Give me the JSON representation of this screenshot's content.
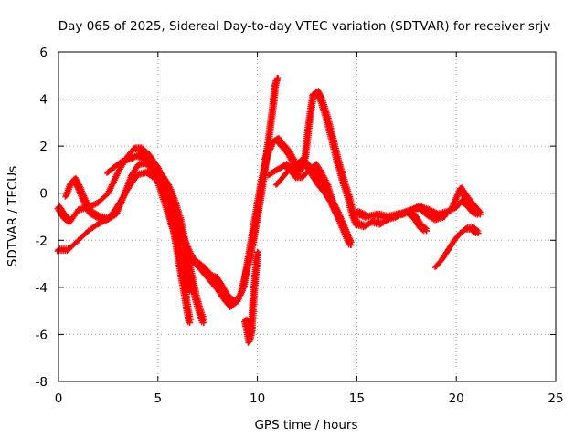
{
  "chart_data": {
    "type": "scatter",
    "title": "Day 065 of 2025, Sidereal Day-to-day VTEC variation (SDTVAR) for receiver srjv",
    "xlabel": "GPS time / hours",
    "ylabel": "SDTVAR / TECUs",
    "xlim": [
      0,
      25
    ],
    "ylim": [
      -8,
      6
    ],
    "xticks": [
      0,
      5,
      10,
      15,
      20,
      25
    ],
    "yticks": [
      -8,
      -6,
      -4,
      -2,
      0,
      2,
      4,
      6
    ],
    "xtick_labels": [
      "0",
      "5",
      "10",
      "15",
      "20",
      "25"
    ],
    "ytick_labels": [
      "-8",
      "-6",
      "-4",
      "-2",
      "0",
      "2",
      "4",
      "6"
    ],
    "grid": true,
    "marker": "+",
    "color": "#ff0000",
    "series": [
      {
        "name": "trace-1",
        "x": [
          0.0,
          0.3,
          0.6,
          1.0,
          1.5,
          2.0,
          2.5,
          3.0,
          3.5,
          3.8,
          4.1,
          4.5,
          5.0,
          5.3,
          5.6,
          5.9,
          6.2,
          6.4,
          6.6,
          6.8,
          7.0,
          7.3,
          7.6,
          8.0,
          8.4,
          8.7,
          9.0,
          9.3,
          9.6,
          9.9,
          10.2,
          10.5,
          10.8,
          11.0
        ],
        "y": [
          -0.6,
          -1.0,
          -1.2,
          -0.7,
          -0.6,
          -0.4,
          0.0,
          0.9,
          1.6,
          1.9,
          1.9,
          1.6,
          1.0,
          0.3,
          -0.3,
          -1.0,
          -1.8,
          -2.2,
          -2.6,
          -2.9,
          -3.0,
          -3.3,
          -3.6,
          -4.0,
          -4.5,
          -4.8,
          -4.6,
          -4.0,
          -2.5,
          -1.0,
          0.5,
          1.6,
          2.2,
          2.3
        ]
      },
      {
        "name": "trace-2",
        "x": [
          0.0,
          0.5,
          1.0,
          1.5,
          2.0,
          2.5,
          3.0,
          3.5,
          4.0,
          4.5,
          5.0,
          5.3,
          5.6,
          5.9,
          6.2,
          6.5,
          6.7
        ],
        "y": [
          -2.4,
          -2.4,
          -2.0,
          -1.6,
          -1.3,
          -1.1,
          -0.5,
          0.2,
          0.8,
          0.9,
          0.6,
          -0.2,
          -1.0,
          -1.8,
          -2.8,
          -3.8,
          -4.2
        ]
      },
      {
        "name": "trace-3",
        "x": [
          0.4,
          0.6,
          0.8,
          1.0,
          1.3,
          1.6,
          2.0,
          2.5,
          2.9,
          3.3,
          3.7,
          4.0,
          4.4,
          4.8,
          5.2,
          5.5,
          5.8,
          6.1,
          6.3,
          6.5,
          6.7,
          6.9,
          7.1,
          7.3
        ],
        "y": [
          -0.1,
          0.4,
          0.6,
          0.3,
          -0.3,
          -0.8,
          -1.0,
          -1.1,
          -0.9,
          -0.1,
          0.8,
          1.2,
          1.3,
          1.1,
          0.7,
          0.3,
          -0.3,
          -1.1,
          -1.9,
          -2.8,
          -3.6,
          -4.4,
          -5.0,
          -5.5
        ]
      },
      {
        "name": "trace-4",
        "x": [
          2.5,
          2.8,
          3.1,
          3.4,
          3.7,
          4.0,
          4.3,
          4.6,
          4.9,
          5.2,
          5.5,
          5.8,
          6.0,
          6.2,
          6.4,
          6.6
        ],
        "y": [
          0.9,
          1.1,
          1.3,
          1.4,
          1.5,
          1.6,
          1.5,
          1.3,
          1.0,
          0.6,
          -0.3,
          -1.5,
          -2.5,
          -3.5,
          -4.5,
          -5.5
        ]
      },
      {
        "name": "trace-5",
        "x": [
          7.0,
          7.3,
          7.6,
          7.9,
          8.2,
          8.4,
          8.6,
          8.8,
          9.0,
          9.2,
          9.4,
          9.6,
          9.8,
          10.0,
          10.2,
          10.4,
          10.6,
          10.8,
          10.9,
          11.0
        ],
        "y": [
          -3.0,
          -3.2,
          -3.5,
          -3.6,
          -4.0,
          -4.3,
          -4.5,
          -4.6,
          -4.5,
          -4.2,
          -3.5,
          -2.8,
          -2.0,
          -1.0,
          0.0,
          1.2,
          2.5,
          3.8,
          4.6,
          4.9
        ]
      },
      {
        "name": "trace-6",
        "x": [
          9.4,
          9.5,
          9.6,
          9.7,
          9.8,
          9.9,
          10.0
        ],
        "y": [
          -5.4,
          -5.8,
          -6.3,
          -5.9,
          -4.5,
          -3.5,
          -2.5
        ]
      },
      {
        "name": "trace-7",
        "x": [
          10.4,
          10.7,
          11.0,
          11.3,
          11.6,
          11.9,
          12.2,
          12.4,
          12.6,
          12.8,
          13.0,
          13.2,
          13.5,
          13.8,
          14.0,
          14.3,
          14.6,
          14.8,
          15.0
        ],
        "y": [
          1.5,
          2.1,
          2.3,
          2.0,
          1.7,
          1.2,
          1.0,
          1.5,
          3.0,
          4.2,
          4.3,
          4.0,
          3.2,
          2.2,
          1.5,
          0.6,
          -0.2,
          -0.9,
          -1.3
        ]
      },
      {
        "name": "trace-8",
        "x": [
          10.6,
          11.0,
          11.4,
          11.7,
          12.0,
          12.3,
          12.6,
          12.9,
          13.2,
          13.5,
          13.8,
          14.1,
          14.4,
          14.7
        ],
        "y": [
          0.8,
          1.0,
          1.2,
          1.0,
          0.7,
          0.7,
          1.0,
          1.2,
          0.8,
          0.3,
          -0.5,
          -1.0,
          -1.6,
          -2.2
        ]
      },
      {
        "name": "trace-9",
        "x": [
          11.0,
          11.3,
          11.6,
          11.9,
          12.2,
          12.5,
          12.8,
          13.1,
          13.4,
          13.7,
          14.0,
          14.3,
          14.5,
          14.7
        ],
        "y": [
          0.4,
          0.7,
          1.0,
          1.2,
          1.4,
          1.2,
          0.8,
          0.4,
          0.1,
          -0.3,
          -0.8,
          -1.4,
          -1.8,
          -2.2
        ]
      },
      {
        "name": "trace-10",
        "x": [
          15.0,
          15.5,
          16.0,
          16.5,
          17.0,
          17.5,
          18.0,
          18.5,
          19.0,
          19.5,
          20.0,
          20.3,
          20.6,
          20.9,
          21.2
        ],
        "y": [
          -0.8,
          -1.0,
          -0.9,
          -1.0,
          -0.9,
          -0.8,
          -0.6,
          -0.7,
          -0.9,
          -0.8,
          -0.6,
          -0.3,
          -0.5,
          -0.8,
          -0.9
        ]
      },
      {
        "name": "trace-11",
        "x": [
          15.0,
          15.4,
          15.8,
          16.2,
          16.6,
          17.0,
          17.4,
          17.8,
          18.2,
          18.6,
          19.0,
          19.4,
          19.8,
          20.2,
          20.6,
          21.0,
          21.2
        ],
        "y": [
          -1.3,
          -1.4,
          -1.2,
          -1.3,
          -1.1,
          -1.0,
          -0.8,
          -0.7,
          -0.6,
          -0.9,
          -1.1,
          -1.0,
          -0.6,
          0.2,
          -0.3,
          -0.7,
          -0.9
        ]
      },
      {
        "name": "trace-12",
        "x": [
          17.3,
          17.6,
          17.9,
          18.2,
          18.5
        ],
        "y": [
          -0.9,
          -0.8,
          -1.0,
          -1.4,
          -1.6
        ]
      },
      {
        "name": "trace-13",
        "x": [
          19.0,
          19.3,
          19.6,
          19.9,
          20.2,
          20.5,
          20.8,
          21.1
        ],
        "y": [
          -3.1,
          -2.8,
          -2.4,
          -2.0,
          -1.7,
          -1.5,
          -1.5,
          -1.7
        ]
      }
    ]
  }
}
